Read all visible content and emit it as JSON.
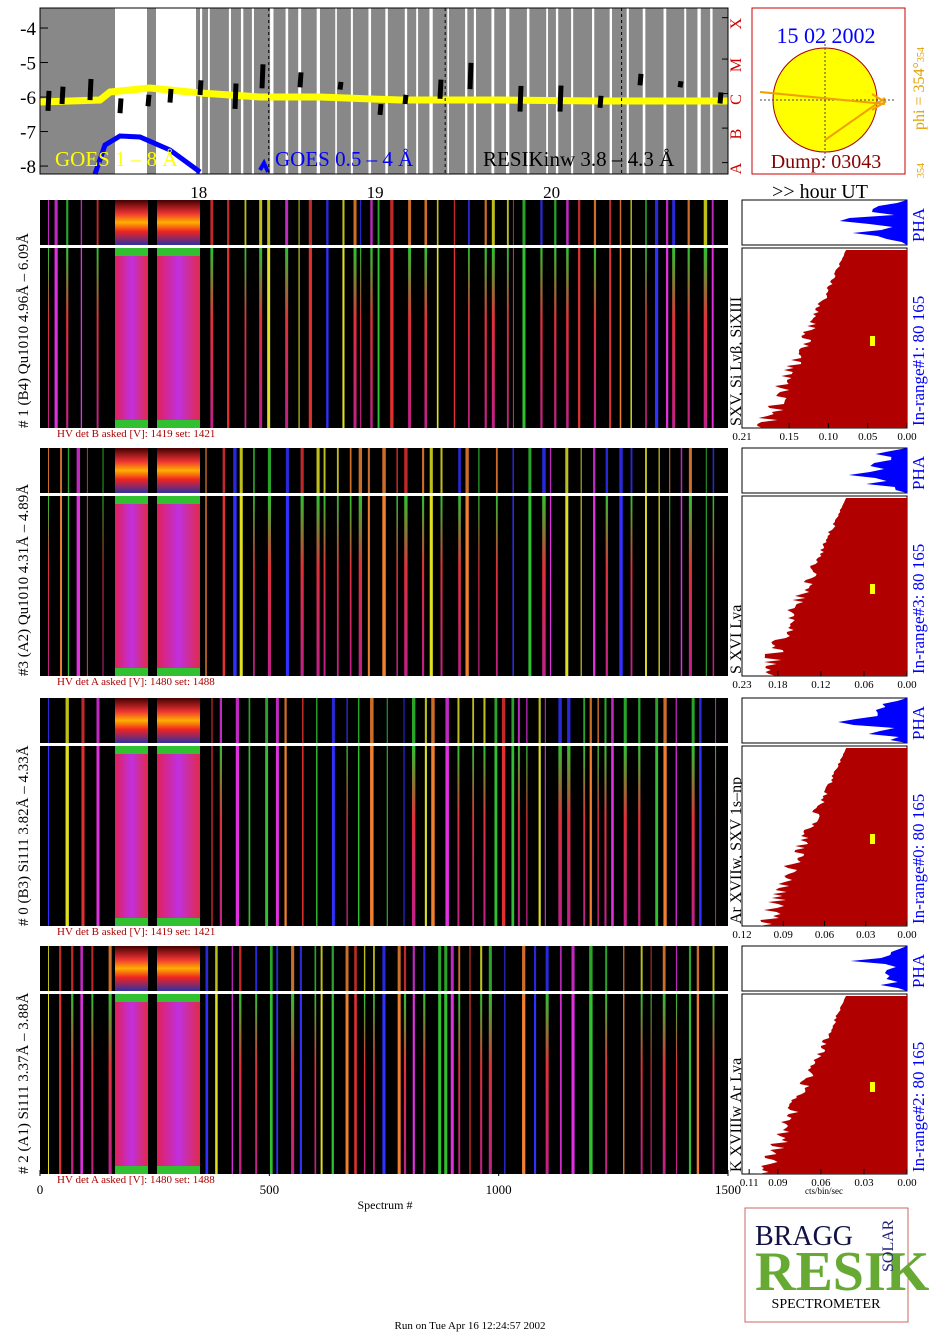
{
  "goes_panel": {
    "ylim": [
      -8.23,
      -3.42
    ],
    "yticks": [
      -4,
      -5,
      -6,
      -7,
      -8
    ],
    "class_ticks": [
      {
        "value": -7.9,
        "label": "A"
      },
      {
        "value": -6.9,
        "label": "B"
      },
      {
        "value": -5.9,
        "label": "C"
      },
      {
        "value": -4.9,
        "label": "M"
      },
      {
        "value": -3.7,
        "label": "X"
      }
    ],
    "legend": [
      "GOES 1 – 8 Å",
      "GOES 0.5 – 4 Å",
      "RESIKinw 3.8 – 4.3 Å"
    ]
  },
  "sun": {
    "date": "15 02 2002",
    "dump": "Dump: 03043",
    "phi": "phi = 354°",
    "phi_sub": "354",
    "angle": "354"
  },
  "hours": {
    "hlim": [
      17.1,
      21.0
    ],
    "ticks": [
      18,
      19,
      20
    ],
    "label": ">> hour UT"
  },
  "panels": [
    {
      "label": "# 1 (B4) Qu1010 4.96Å – 6.09Å",
      "lines": "SXV, Si Lyβ, SiXIII",
      "pha": "PHA",
      "in_range": "In-range#1:   80 165",
      "hv": "HV det B asked [V]:  1419 set:  1421",
      "xlim": [
        0.21,
        0
      ],
      "xticks": [
        0.21,
        0.15,
        {
          "value": 0.1,
          "label": "0.10"
        },
        0.05,
        {
          "value": 0,
          "label": "0.00"
        }
      ]
    },
    {
      "label": "#3 (A2) Qu1010  4.31Å – 4.89Å",
      "lines": "S XVI Lya",
      "pha": "PHA",
      "in_range": "In-range#3:   80 165",
      "hv": "HV det A asked [V]:  1480 set:  1488",
      "xlim": [
        0.23,
        0
      ],
      "xticks": [
        0.23,
        0.18,
        0.12,
        0.06,
        {
          "value": 0,
          "label": "0.00"
        }
      ]
    },
    {
      "label": "# 0 (B3) Si111  3.82Å – 4.33Å",
      "lines": "Ar XVIIw,  SXV 1s–np",
      "pha": "PHA",
      "in_range": "In-range#0:   80 165",
      "hv": "HV det B asked [V]:  1419 set:  1421",
      "xlim": [
        0.12,
        0
      ],
      "xticks": [
        0.12,
        0.09,
        0.06,
        0.03,
        {
          "value": 0,
          "label": "0.00"
        }
      ]
    },
    {
      "label": "# 2 (A1) Si111  3.37Å – 3.88Å",
      "lines": "K XVIIIw Ar Lya",
      "pha": "PHA",
      "in_range": "In-range#2:   80 165",
      "hv": "HV det A asked [V]:  1480 set:  1488",
      "xlim": [
        0.115,
        0
      ],
      "xticks": [
        0.11,
        0.09,
        0.06,
        0.03,
        {
          "value": 0,
          "label": "0.00"
        }
      ]
    }
  ],
  "x_axis": {
    "xlim": [
      0,
      1500
    ],
    "xticks": [
      0,
      500,
      1000,
      1500
    ],
    "label": "Spectrum #"
  },
  "hist_axis_label": "cts/bin/sec",
  "logo": {
    "bragg": "BRAGG",
    "resik": "RESIK",
    "solar": "SOLAR",
    "spectrometer": "SPECTROMETER"
  },
  "footer": "Run on Tue Apr 16 12:24:57 2002"
}
